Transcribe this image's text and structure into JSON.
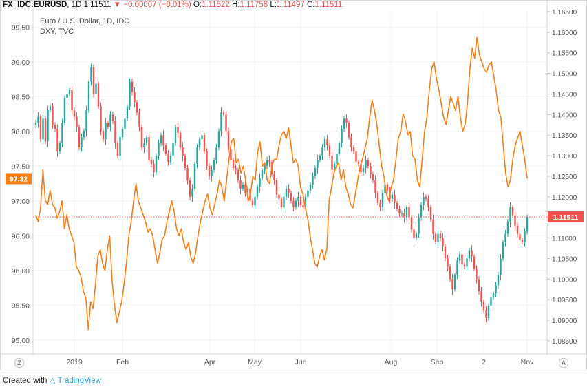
{
  "header": {
    "symbol": "FX_IDC:EURUSD",
    "interval": "1D",
    "last": "1.11511",
    "change": "▼",
    "change_value": "−0.00007 (−0.01%)",
    "open_label": "O:",
    "open": "1.11522",
    "high_label": "H:",
    "high": "1.11758",
    "low_label": "L:",
    "low": "1.11497",
    "close_label": "C:",
    "close": "1.11511"
  },
  "legend": {
    "main": "Euro / U.S. Dollar, 1D, IDC",
    "compare": "DXY, TVC"
  },
  "footer": {
    "text": "Created with",
    "brand": "TradingView"
  },
  "corner_buttons": {
    "left": "Z",
    "right": "A"
  },
  "chart_data": {
    "type": "line",
    "x_ticks": [
      "2019",
      "Feb",
      "Apr",
      "May",
      "Jun",
      "Aug",
      "Sep",
      "2",
      "Nov"
    ],
    "left_axis": {
      "ticks": [
        "99.50",
        "99.00",
        "98.50",
        "98.00",
        "97.50",
        "97.00",
        "96.50",
        "96.00",
        "95.50",
        "95.00"
      ],
      "range": [
        94.8,
        99.75
      ],
      "current_label": "97.32"
    },
    "right_axis": {
      "ticks": [
        "1.16500",
        "1.16000",
        "1.15500",
        "1.15000",
        "1.14500",
        "1.14000",
        "1.13500",
        "1.13000",
        "1.12500",
        "1.12000",
        "1.11500",
        "1.11000",
        "1.10500",
        "1.10000",
        "1.09500",
        "1.09000",
        "1.08500"
      ],
      "range": [
        1.0818,
        1.1655
      ],
      "current_label": "1.11511"
    },
    "series": [
      {
        "name": "DXY, TVC",
        "style": "line",
        "color": "#f57f17",
        "axis": "left",
        "values": [
          96.8,
          96.7,
          96.9,
          97.45,
          97.0,
          96.95,
          97.15,
          96.95,
          96.9,
          96.75,
          96.85,
          97.0,
          96.6,
          96.8,
          96.6,
          96.5,
          96.4,
          96.05,
          96.0,
          95.9,
          95.7,
          95.6,
          95.15,
          95.55,
          95.45,
          95.8,
          96.2,
          96.3,
          96.1,
          96.0,
          96.3,
          96.5,
          95.85,
          95.5,
          95.25,
          95.4,
          95.55,
          95.8,
          96.1,
          96.5,
          96.7,
          97.0,
          97.25,
          97.0,
          96.9,
          96.8,
          96.7,
          96.55,
          96.6,
          96.5,
          96.3,
          96.1,
          96.25,
          96.45,
          96.5,
          96.7,
          96.85,
          97.0,
          96.85,
          96.6,
          96.5,
          96.6,
          96.4,
          96.3,
          96.4,
          96.2,
          96.1,
          96.25,
          96.5,
          96.7,
          96.85,
          97.0,
          97.1,
          96.9,
          96.8,
          96.95,
          97.1,
          97.3,
          97.2,
          97.0,
          97.3,
          97.6,
          97.85,
          97.9,
          97.55,
          97.6,
          97.4,
          97.5,
          97.3,
          97.0,
          97.1,
          97.35,
          97.3,
          97.7,
          97.85,
          97.5,
          97.55,
          97.3,
          97.25,
          97.5,
          97.6,
          97.6,
          97.8,
          97.95,
          98.0,
          97.9,
          98.05,
          97.8,
          97.55,
          97.6,
          97.5,
          97.2,
          97.1,
          96.9,
          96.75,
          96.5,
          96.3,
          96.1,
          96.05,
          96.2,
          96.3,
          96.15,
          96.3,
          97.0,
          97.2,
          97.4,
          97.5,
          97.55,
          97.3,
          97.45,
          97.2,
          97.1,
          96.95,
          96.9,
          97.1,
          97.3,
          97.5,
          97.6,
          97.75,
          97.9,
          98.2,
          98.45,
          98.3,
          98.1,
          97.8,
          97.5,
          97.35,
          97.1,
          97.0,
          97.2,
          97.3,
          97.6,
          97.9,
          98.0,
          98.25,
          98.15,
          97.95,
          98.0,
          97.65,
          97.6,
          97.3,
          97.2,
          97.6,
          98.0,
          98.2,
          98.6,
          98.9,
          99.0,
          98.75,
          98.6,
          98.4,
          98.2,
          98.1,
          98.3,
          98.5,
          98.4,
          98.3,
          98.5,
          98.2,
          98.0,
          98.1,
          98.4,
          98.9,
          99.2,
          99.05,
          99.35,
          99.1,
          99.0,
          98.9,
          98.85,
          98.95,
          99.0,
          98.8,
          98.6,
          98.3,
          98.2,
          97.8,
          97.4,
          97.2,
          97.3,
          97.6,
          97.8,
          97.9,
          98.0,
          97.8,
          97.6,
          97.32
        ]
      },
      {
        "name": "Euro / U.S. Dollar, 1D, IDC",
        "style": "candlestick",
        "up_color": "#26a69a",
        "down_color": "#ef5350",
        "axis": "right",
        "closes": [
          1.138,
          1.1395,
          1.134,
          1.139,
          1.1335,
          1.141,
          1.142,
          1.1375,
          1.1365,
          1.131,
          1.133,
          1.138,
          1.144,
          1.145,
          1.146,
          1.141,
          1.1395,
          1.137,
          1.132,
          1.1345,
          1.136,
          1.141,
          1.148,
          1.1515,
          1.145,
          1.1475,
          1.142,
          1.136,
          1.134,
          1.138,
          1.137,
          1.14,
          1.1385,
          1.133,
          1.13,
          1.1345,
          1.1365,
          1.139,
          1.142,
          1.148,
          1.1455,
          1.143,
          1.1405,
          1.137,
          1.132,
          1.133,
          1.1345,
          1.129,
          1.128,
          1.126,
          1.13,
          1.133,
          1.135,
          1.1325,
          1.1305,
          1.1285,
          1.13,
          1.133,
          1.137,
          1.1355,
          1.132,
          1.13,
          1.127,
          1.124,
          1.12,
          1.122,
          1.128,
          1.132,
          1.134,
          1.135,
          1.131,
          1.1275,
          1.125,
          1.1265,
          1.129,
          1.132,
          1.136,
          1.1405,
          1.14,
          1.136,
          1.1315,
          1.129,
          1.127,
          1.1265,
          1.124,
          1.122,
          1.123,
          1.121,
          1.122,
          1.119,
          1.118,
          1.12,
          1.1225,
          1.1245,
          1.1265,
          1.1275,
          1.129,
          1.1285,
          1.1255,
          1.124,
          1.1205,
          1.1195,
          1.1175,
          1.12,
          1.122,
          1.121,
          1.119,
          1.1175,
          1.119,
          1.12,
          1.118,
          1.1175,
          1.12,
          1.1215,
          1.123,
          1.125,
          1.127,
          1.129,
          1.13,
          1.132,
          1.134,
          1.1325,
          1.13,
          1.1265,
          1.128,
          1.1305,
          1.133,
          1.1365,
          1.139,
          1.138,
          1.1345,
          1.132,
          1.131,
          1.1285,
          1.128,
          1.126,
          1.127,
          1.129,
          1.1275,
          1.1255,
          1.124,
          1.121,
          1.1185,
          1.1175,
          1.121,
          1.123,
          1.1215,
          1.1195,
          1.1205,
          1.1185,
          1.117,
          1.116,
          1.116,
          1.115,
          1.1175,
          1.115,
          1.112,
          1.11,
          1.111,
          1.115,
          1.118,
          1.12,
          1.1195,
          1.1175,
          1.1145,
          1.111,
          1.109,
          1.111,
          1.11,
          1.108,
          1.105,
          1.103,
          1.1,
          1.0975,
          1.101,
          1.1045,
          1.106,
          1.1035,
          1.103,
          1.105,
          1.107,
          1.1055,
          1.1025,
          1.1,
          1.097,
          1.0945,
          1.0925,
          1.0905,
          1.0935,
          1.0955,
          1.0965,
          1.0985,
          1.101,
          1.105,
          1.109,
          1.111,
          1.114,
          1.1175,
          1.1155,
          1.113,
          1.111,
          1.1095,
          1.109,
          1.1115,
          1.1151
        ]
      }
    ],
    "price_line": 1.11511,
    "grid": true
  }
}
